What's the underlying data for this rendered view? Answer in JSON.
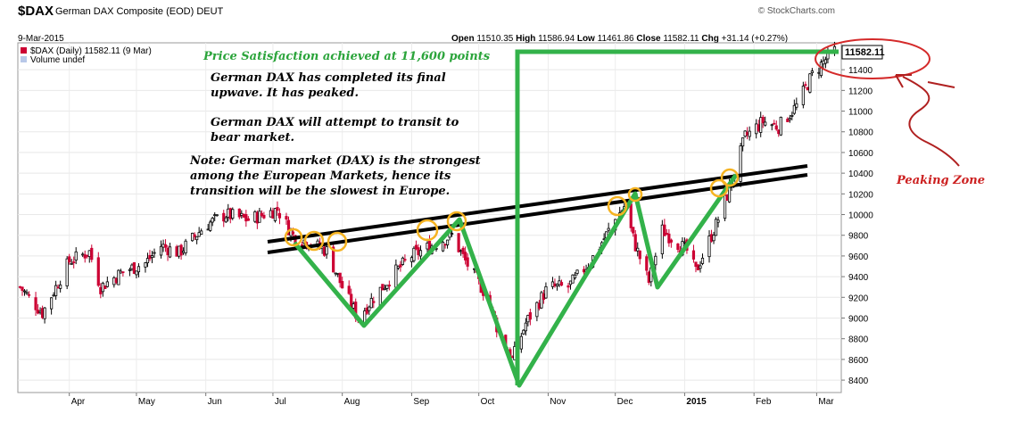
{
  "header": {
    "symbol": "$DAX",
    "description": "German DAX Composite (EOD)",
    "exchange": "DEUT",
    "source": "© StockCharts.com",
    "date": "9-Mar-2015",
    "open_label": "Open",
    "open": "11510.35",
    "high_label": "High",
    "high": "11586.94",
    "low_label": "Low",
    "low": "11461.86",
    "close_label": "Close",
    "close": "11582.11",
    "chg_label": "Chg",
    "chg": "+31.14 (+0.27%)",
    "legend_price": "$DAX (Daily) 11582.11 (9 Mar)",
    "legend_volume": "Volume undef"
  },
  "chart_data": {
    "type": "candlestick",
    "x_ticks": [
      "Apr",
      "May",
      "Jun",
      "Jul",
      "Aug",
      "Sep",
      "Oct",
      "Nov",
      "Dec",
      "2015",
      "Feb",
      "Mar"
    ],
    "y_ticks": [
      8400,
      8600,
      8800,
      9000,
      9200,
      9400,
      9600,
      9800,
      10000,
      10200,
      10400,
      10600,
      10800,
      11000,
      11200,
      11400
    ],
    "ylim": [
      8280,
      11660
    ],
    "last_price_label": "11582.11",
    "series": [
      {
        "date": "2014-03-10",
        "close": 9300
      },
      {
        "date": "2014-03-20",
        "close": 9050
      },
      {
        "date": "2014-04-01",
        "close": 9550
      },
      {
        "date": "2014-04-10",
        "close": 9640
      },
      {
        "date": "2014-04-15",
        "close": 9300
      },
      {
        "date": "2014-04-25",
        "close": 9450
      },
      {
        "date": "2014-05-05",
        "close": 9530
      },
      {
        "date": "2014-05-12",
        "close": 9700
      },
      {
        "date": "2014-05-20",
        "close": 9630
      },
      {
        "date": "2014-06-01",
        "close": 9900
      },
      {
        "date": "2014-06-10",
        "close": 10000
      },
      {
        "date": "2014-06-20",
        "close": 9950
      },
      {
        "date": "2014-07-03",
        "close": 10050
      },
      {
        "date": "2014-07-10",
        "close": 9800
      },
      {
        "date": "2014-07-20",
        "close": 9700
      },
      {
        "date": "2014-07-25",
        "close": 9650
      },
      {
        "date": "2014-08-01",
        "close": 9300
      },
      {
        "date": "2014-08-08",
        "close": 9000
      },
      {
        "date": "2014-08-15",
        "close": 9200
      },
      {
        "date": "2014-08-25",
        "close": 9450
      },
      {
        "date": "2014-09-01",
        "close": 9600
      },
      {
        "date": "2014-09-10",
        "close": 9700
      },
      {
        "date": "2014-09-19",
        "close": 9800
      },
      {
        "date": "2014-09-25",
        "close": 9550
      },
      {
        "date": "2014-10-05",
        "close": 9200
      },
      {
        "date": "2014-10-10",
        "close": 8850
      },
      {
        "date": "2014-10-16",
        "close": 8600
      },
      {
        "date": "2014-10-22",
        "close": 8950
      },
      {
        "date": "2014-11-01",
        "close": 9300
      },
      {
        "date": "2014-11-10",
        "close": 9300
      },
      {
        "date": "2014-11-20",
        "close": 9550
      },
      {
        "date": "2014-12-01",
        "close": 9950
      },
      {
        "date": "2014-12-05",
        "close": 10080
      },
      {
        "date": "2014-12-10",
        "close": 9700
      },
      {
        "date": "2014-12-16",
        "close": 9350
      },
      {
        "date": "2014-12-22",
        "close": 9850
      },
      {
        "date": "2015-01-02",
        "close": 9650
      },
      {
        "date": "2015-01-06",
        "close": 9450
      },
      {
        "date": "2015-01-15",
        "close": 9900
      },
      {
        "date": "2015-01-22",
        "close": 10300
      },
      {
        "date": "2015-01-28",
        "close": 10750
      },
      {
        "date": "2015-02-05",
        "close": 10900
      },
      {
        "date": "2015-02-12",
        "close": 10850
      },
      {
        "date": "2015-02-20",
        "close": 11050
      },
      {
        "date": "2015-02-27",
        "close": 11350
      },
      {
        "date": "2015-03-05",
        "close": 11500
      },
      {
        "date": "2015-03-09",
        "close": 11582.11
      }
    ]
  },
  "annotations": {
    "satisfaction": "Price Satisfaction achieved at 11,600 points",
    "completed_1": "German DAX has completed its final",
    "completed_2": "upwave. It has peaked.",
    "transit_1": "German DAX will attempt to transit to",
    "transit_2": "bear market.",
    "note_1": "Note: German market (DAX) is the strongest",
    "note_2": "among the European Markets, hence its",
    "note_3": "transition will be the slowest in Europe.",
    "peaking_zone": "Peaking Zone"
  },
  "colors": {
    "up_candle": "#000000",
    "down_candle": "#cc0033",
    "wave_line": "#33b24a",
    "trend_line": "#000000",
    "highlight_circle": "#f5b321",
    "peak_ellipse": "#d42a2a",
    "satisfaction_text": "#2aa43a",
    "peaking_text": "#cc2020"
  }
}
